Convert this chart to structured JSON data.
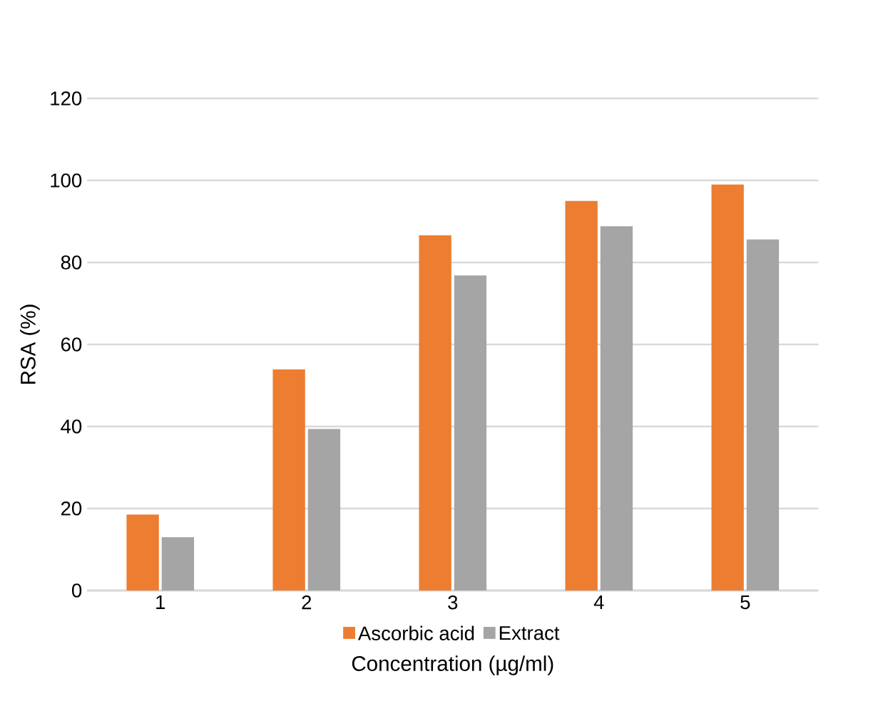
{
  "chart_data": {
    "type": "bar",
    "xlabel": "Concentration (µg/ml)",
    "ylabel": "RSA (%)",
    "categories": [
      "1",
      "2",
      "3",
      "4",
      "5"
    ],
    "series": [
      {
        "name": "Ascorbic acid",
        "color": "#ed7d31",
        "values": [
          18.5,
          53.9,
          86.6,
          95.0,
          99.0
        ]
      },
      {
        "name": "Extract",
        "color": "#a5a5a5",
        "values": [
          13.0,
          39.4,
          76.8,
          88.8,
          85.6
        ]
      }
    ],
    "ylim": [
      0,
      120
    ],
    "yticks": [
      0,
      20,
      40,
      60,
      80,
      100,
      120
    ],
    "grid": "y",
    "legend": "bottom"
  }
}
